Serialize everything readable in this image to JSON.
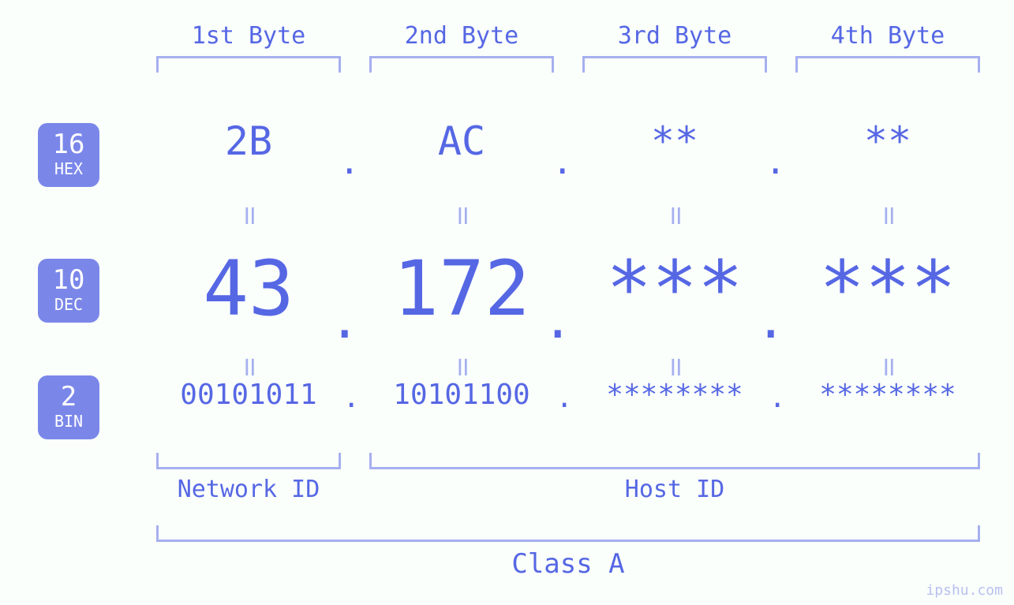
{
  "colors": {
    "background": "#fafffc",
    "accent": "#5667e4",
    "light": "#a6b0ef",
    "badge": "#7a87e9"
  },
  "byte_headers": [
    "1st Byte",
    "2nd Byte",
    "3rd Byte",
    "4th Byte"
  ],
  "rows": {
    "hex": {
      "badge_num": "16",
      "badge_txt": "HEX",
      "values": [
        "2B",
        "AC",
        "**",
        "**"
      ],
      "fontsize": 50
    },
    "dec": {
      "badge_num": "10",
      "badge_txt": "DEC",
      "values": [
        "43",
        "172",
        "***",
        "***"
      ],
      "fontsize": 96
    },
    "bin": {
      "badge_num": "2",
      "badge_txt": "BIN",
      "values": [
        "00101011",
        "10101100",
        "********",
        "********"
      ],
      "fontsize": 36
    }
  },
  "equals_glyph": "॥",
  "separator": ".",
  "ids": {
    "network": "Network ID",
    "host": "Host ID",
    "network_span_bytes": 1,
    "host_span_bytes": 3
  },
  "class_label": "Class A",
  "watermark": "ipshu.com"
}
